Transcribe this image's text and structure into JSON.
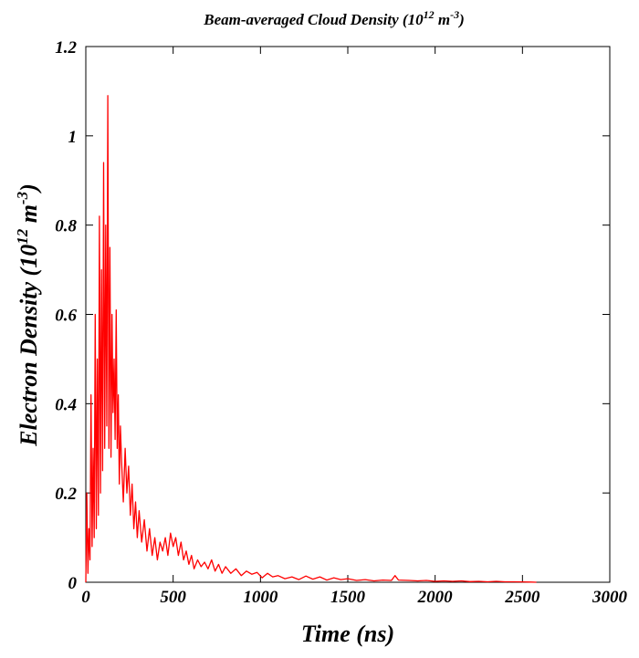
{
  "chart_data": {
    "type": "line",
    "title": {
      "text": "Beam-averaged Cloud Density (10",
      "exp1": "12",
      "unit": " m",
      "exp2": "-3",
      "close": ")"
    },
    "xlabel": "Time (ns)",
    "ylabel": {
      "text": "Electron Density (10",
      "exp1": "12",
      "unit": " m",
      "exp2": "-3",
      "close": ")"
    },
    "xlim": [
      0,
      3000
    ],
    "ylim": [
      0,
      1.2
    ],
    "x_ticks": [
      {
        "value": 0,
        "label": "0"
      },
      {
        "value": 500,
        "label": "500"
      },
      {
        "value": 1000,
        "label": "1000"
      },
      {
        "value": 1500,
        "label": "1500"
      },
      {
        "value": 2000,
        "label": "2000"
      },
      {
        "value": 2500,
        "label": "2500"
      },
      {
        "value": 3000,
        "label": "3000"
      }
    ],
    "y_ticks": [
      {
        "value": 0,
        "label": "0"
      },
      {
        "value": 0.2,
        "label": "0.2"
      },
      {
        "value": 0.4,
        "label": "0.4"
      },
      {
        "value": 0.6,
        "label": "0.6"
      },
      {
        "value": 0.8,
        "label": "0.8"
      },
      {
        "value": 1.0,
        "label": "1"
      },
      {
        "value": 1.2,
        "label": "1.2"
      }
    ],
    "grid": false,
    "series": [
      {
        "color": "#ff0000",
        "x": [
          0,
          6,
          12,
          18,
          24,
          30,
          36,
          42,
          48,
          54,
          60,
          66,
          72,
          78,
          84,
          90,
          96,
          102,
          108,
          114,
          120,
          126,
          132,
          138,
          144,
          150,
          156,
          162,
          168,
          174,
          180,
          186,
          192,
          198,
          205,
          215,
          225,
          235,
          245,
          255,
          265,
          275,
          285,
          295,
          305,
          320,
          335,
          350,
          365,
          380,
          395,
          410,
          425,
          440,
          455,
          470,
          485,
          500,
          515,
          530,
          545,
          560,
          575,
          590,
          605,
          620,
          640,
          660,
          680,
          700,
          720,
          740,
          760,
          780,
          800,
          830,
          860,
          890,
          920,
          950,
          980,
          1010,
          1040,
          1070,
          1100,
          1140,
          1180,
          1220,
          1260,
          1300,
          1340,
          1380,
          1420,
          1460,
          1500,
          1550,
          1600,
          1650,
          1700,
          1750,
          1770,
          1790,
          1850,
          1900,
          1950,
          2000,
          2050,
          2100,
          2150,
          2200,
          2250,
          2300,
          2350,
          2400,
          2450,
          2500,
          2550,
          2580
        ],
        "y": [
          0.0,
          0.2,
          0.02,
          0.12,
          0.05,
          0.42,
          0.08,
          0.3,
          0.1,
          0.6,
          0.12,
          0.5,
          0.15,
          0.82,
          0.2,
          0.7,
          0.25,
          0.94,
          0.3,
          0.8,
          0.35,
          1.09,
          0.3,
          0.75,
          0.28,
          0.6,
          0.38,
          0.5,
          0.32,
          0.61,
          0.3,
          0.42,
          0.22,
          0.35,
          0.27,
          0.18,
          0.3,
          0.2,
          0.26,
          0.15,
          0.22,
          0.12,
          0.18,
          0.1,
          0.16,
          0.09,
          0.14,
          0.07,
          0.12,
          0.06,
          0.1,
          0.05,
          0.09,
          0.07,
          0.1,
          0.06,
          0.11,
          0.08,
          0.1,
          0.06,
          0.09,
          0.05,
          0.07,
          0.04,
          0.06,
          0.03,
          0.05,
          0.035,
          0.045,
          0.03,
          0.05,
          0.025,
          0.04,
          0.02,
          0.035,
          0.02,
          0.03,
          0.015,
          0.025,
          0.018,
          0.022,
          0.01,
          0.02,
          0.012,
          0.015,
          0.008,
          0.012,
          0.006,
          0.014,
          0.007,
          0.012,
          0.005,
          0.01,
          0.006,
          0.008,
          0.004,
          0.006,
          0.003,
          0.005,
          0.004,
          0.015,
          0.005,
          0.004,
          0.003,
          0.004,
          0.002,
          0.003,
          0.002,
          0.003,
          0.0015,
          0.002,
          0.001,
          0.002,
          0.001,
          0.001,
          0.0008,
          0.0005,
          0.0
        ]
      }
    ]
  }
}
